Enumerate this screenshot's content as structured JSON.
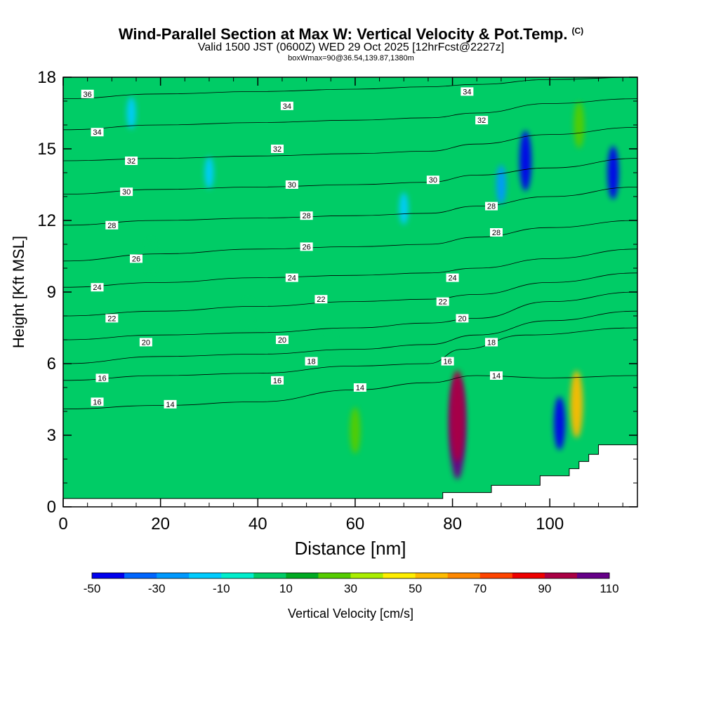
{
  "header": {
    "title": "Wind-Parallel Section at Max W: Vertical Velocity & Pot.Temp.",
    "copyright": "(C)",
    "subtitle": "Valid 1500 JST (0600Z) WED 29 Oct 2025 [12hrFcst@2227z]",
    "subtitle2": "boxWmax=90@36.54,139.87,1380m"
  },
  "chart_data": {
    "type": "heatmap",
    "xlabel": "Distance [nm]",
    "ylabel": "Height [Kft MSL]",
    "xlim": [
      0,
      118
    ],
    "ylim": [
      0,
      18
    ],
    "x_ticks": [
      0,
      20,
      40,
      60,
      80,
      100
    ],
    "y_ticks": [
      0,
      3,
      6,
      9,
      12,
      15,
      18
    ],
    "colorbar": {
      "label": "Vertical Velocity [cm/s]",
      "tick_labels": [
        "-50",
        "-30",
        "-10",
        "10",
        "30",
        "50",
        "70",
        "90",
        "110"
      ],
      "levels": [
        -50,
        -40,
        -30,
        -20,
        -10,
        0,
        10,
        20,
        30,
        40,
        50,
        60,
        70,
        80,
        90,
        100,
        110
      ],
      "colors": [
        "#0000ee",
        "#0066ff",
        "#0099ff",
        "#00ccff",
        "#00eecc",
        "#00cc66",
        "#00aa22",
        "#55cc00",
        "#aaee00",
        "#ffee00",
        "#ffbb00",
        "#ff8800",
        "#ff4400",
        "#ee0000",
        "#aa0044",
        "#660088"
      ]
    },
    "background_color": "#00cc66",
    "terrain_surface": [
      [
        0,
        0.35
      ],
      [
        78,
        0.35
      ],
      [
        78,
        0.6
      ],
      [
        88,
        0.6
      ],
      [
        88,
        0.9
      ],
      [
        98,
        0.9
      ],
      [
        98,
        1.3
      ],
      [
        104,
        1.3
      ],
      [
        104,
        1.6
      ],
      [
        106,
        1.6
      ],
      [
        106,
        1.9
      ],
      [
        108,
        1.9
      ],
      [
        108,
        2.2
      ],
      [
        110,
        2.2
      ],
      [
        110,
        2.6
      ],
      [
        118,
        2.6
      ]
    ],
    "velocity_cells": [
      {
        "x": 81,
        "y": 3.3,
        "value": 110
      },
      {
        "x": 81,
        "y": 3.8,
        "value": 95
      },
      {
        "x": 105.5,
        "y": 4.3,
        "value": 60
      },
      {
        "x": 60,
        "y": 3.2,
        "value": 30
      },
      {
        "x": 106,
        "y": 16.0,
        "value": 30
      },
      {
        "x": 95,
        "y": 14.5,
        "value": -50
      },
      {
        "x": 102,
        "y": 3.5,
        "value": -40
      },
      {
        "x": 113,
        "y": 14.0,
        "value": -40
      },
      {
        "x": 90,
        "y": 13.5,
        "value": -20
      },
      {
        "x": 70,
        "y": 12.5,
        "value": -10
      },
      {
        "x": 14,
        "y": 16.5,
        "value": -10
      },
      {
        "x": 30,
        "y": 14.0,
        "value": -10
      },
      {
        "x": 18,
        "y": 10.5,
        "value": 10
      },
      {
        "x": 38,
        "y": 8.0,
        "value": 10
      },
      {
        "x": 55,
        "y": 7.0,
        "value": 10
      },
      {
        "x": 3,
        "y": 15.0,
        "value": 10
      }
    ],
    "isentropes": [
      {
        "label": "14",
        "labels_at": [
          [
            22,
            4.3
          ],
          [
            61,
            5.0
          ],
          [
            89,
            5.5
          ]
        ],
        "points": [
          [
            0,
            4.1
          ],
          [
            20,
            4.25
          ],
          [
            40,
            4.4
          ],
          [
            60,
            4.9
          ],
          [
            75,
            5.2
          ],
          [
            85,
            5.5
          ],
          [
            100,
            5.4
          ],
          [
            118,
            5.5
          ]
        ]
      },
      {
        "label": "16",
        "labels_at": [
          [
            7,
            4.4
          ],
          [
            8,
            5.4
          ],
          [
            44,
            5.3
          ],
          [
            79,
            6.1
          ]
        ],
        "points": [
          [
            0,
            5.3
          ],
          [
            20,
            5.5
          ],
          [
            40,
            5.6
          ],
          [
            60,
            5.9
          ],
          [
            75,
            6.0
          ],
          [
            82,
            6.6
          ],
          [
            95,
            7.2
          ],
          [
            118,
            7.5
          ]
        ]
      },
      {
        "label": "18",
        "labels_at": [
          [
            51,
            6.1
          ],
          [
            88,
            6.9
          ]
        ],
        "points": [
          [
            0,
            6.0
          ],
          [
            20,
            6.3
          ],
          [
            40,
            6.4
          ],
          [
            60,
            6.6
          ],
          [
            75,
            6.8
          ],
          [
            85,
            7.2
          ],
          [
            100,
            7.8
          ],
          [
            118,
            8.2
          ]
        ]
      },
      {
        "label": "20",
        "labels_at": [
          [
            17,
            6.9
          ],
          [
            45,
            7.0
          ],
          [
            82,
            7.9
          ]
        ],
        "points": [
          [
            0,
            7.0
          ],
          [
            20,
            7.2
          ],
          [
            40,
            7.3
          ],
          [
            60,
            7.5
          ],
          [
            75,
            7.7
          ],
          [
            85,
            7.9
          ],
          [
            100,
            8.6
          ],
          [
            118,
            9.0
          ]
        ]
      },
      {
        "label": "22",
        "labels_at": [
          [
            10,
            7.9
          ],
          [
            53,
            8.7
          ],
          [
            78,
            8.6
          ]
        ],
        "points": [
          [
            0,
            8.0
          ],
          [
            20,
            8.2
          ],
          [
            40,
            8.4
          ],
          [
            60,
            8.6
          ],
          [
            75,
            8.7
          ],
          [
            85,
            8.9
          ],
          [
            100,
            9.4
          ],
          [
            118,
            9.8
          ]
        ]
      },
      {
        "label": "24",
        "labels_at": [
          [
            7,
            9.2
          ],
          [
            47,
            9.6
          ],
          [
            80,
            9.6
          ]
        ],
        "points": [
          [
            0,
            9.2
          ],
          [
            20,
            9.4
          ],
          [
            40,
            9.6
          ],
          [
            60,
            9.7
          ],
          [
            75,
            9.8
          ],
          [
            85,
            10.0
          ],
          [
            100,
            10.4
          ],
          [
            118,
            10.8
          ]
        ]
      },
      {
        "label": "26",
        "labels_at": [
          [
            15,
            10.4
          ],
          [
            50,
            10.9
          ]
        ],
        "points": [
          [
            0,
            10.3
          ],
          [
            20,
            10.6
          ],
          [
            40,
            10.8
          ],
          [
            60,
            10.9
          ],
          [
            75,
            11.0
          ],
          [
            85,
            11.3
          ],
          [
            100,
            11.7
          ],
          [
            118,
            12.0
          ]
        ]
      },
      {
        "label": "28",
        "labels_at": [
          [
            10,
            11.8
          ],
          [
            50,
            12.2
          ],
          [
            88,
            12.6
          ],
          [
            89,
            11.5
          ]
        ],
        "points": [
          [
            0,
            11.8
          ],
          [
            20,
            12.0
          ],
          [
            40,
            12.1
          ],
          [
            60,
            12.2
          ],
          [
            75,
            12.3
          ],
          [
            85,
            12.6
          ],
          [
            100,
            13.0
          ],
          [
            118,
            13.4
          ]
        ]
      },
      {
        "label": "30",
        "labels_at": [
          [
            13,
            13.2
          ],
          [
            47,
            13.5
          ],
          [
            76,
            13.7
          ]
        ],
        "points": [
          [
            0,
            13.1
          ],
          [
            20,
            13.3
          ],
          [
            40,
            13.4
          ],
          [
            60,
            13.5
          ],
          [
            75,
            13.6
          ],
          [
            85,
            13.9
          ],
          [
            100,
            14.2
          ],
          [
            118,
            14.6
          ]
        ]
      },
      {
        "label": "32",
        "labels_at": [
          [
            14,
            14.5
          ],
          [
            44,
            15.0
          ],
          [
            86,
            16.2
          ]
        ],
        "points": [
          [
            0,
            14.5
          ],
          [
            20,
            14.6
          ],
          [
            40,
            14.7
          ],
          [
            60,
            14.8
          ],
          [
            75,
            14.9
          ],
          [
            85,
            15.2
          ],
          [
            100,
            15.6
          ],
          [
            118,
            15.9
          ]
        ]
      },
      {
        "label": "34",
        "labels_at": [
          [
            7,
            15.7
          ],
          [
            46,
            16.8
          ],
          [
            83,
            17.4
          ]
        ],
        "points": [
          [
            0,
            15.8
          ],
          [
            20,
            16.0
          ],
          [
            40,
            16.1
          ],
          [
            60,
            16.2
          ],
          [
            75,
            16.3
          ],
          [
            85,
            16.5
          ],
          [
            100,
            16.9
          ],
          [
            118,
            17.1
          ]
        ]
      },
      {
        "label": "36",
        "labels_at": [
          [
            5,
            17.3
          ]
        ],
        "points": [
          [
            0,
            17.1
          ],
          [
            20,
            17.3
          ],
          [
            40,
            17.4
          ],
          [
            60,
            17.5
          ],
          [
            75,
            17.6
          ],
          [
            85,
            17.7
          ],
          [
            100,
            17.9
          ],
          [
            118,
            18.0
          ]
        ]
      }
    ]
  }
}
